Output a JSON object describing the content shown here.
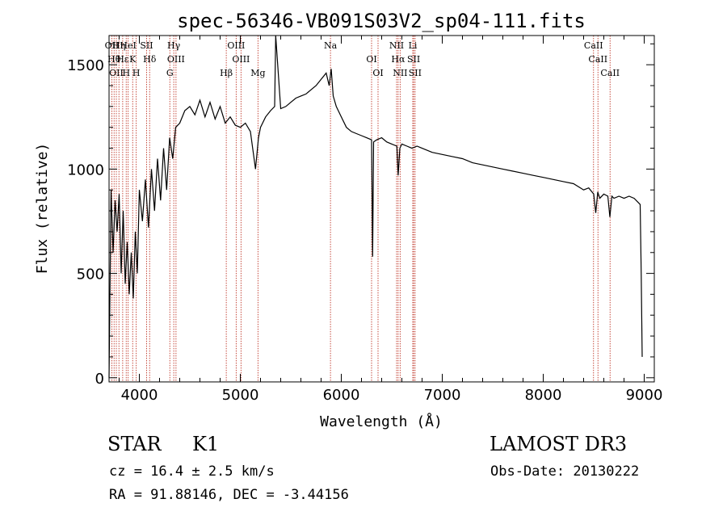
{
  "chart_data": {
    "type": "line",
    "title": "spec-56346-VB091S03V2_sp04-111.fits",
    "xlabel": "Wavelength (Å)",
    "ylabel": "Flux (relative)",
    "xlim": [
      3700,
      9100
    ],
    "ylim": [
      -20,
      1640
    ],
    "xticks": [
      4000,
      5000,
      6000,
      7000,
      8000,
      9000
    ],
    "yticks": [
      0,
      500,
      1000,
      1500
    ],
    "minor_x_step": 200,
    "minor_y_step": 100,
    "series": [
      {
        "name": "spectrum",
        "x": [
          3700,
          3720,
          3740,
          3760,
          3780,
          3800,
          3820,
          3840,
          3860,
          3880,
          3900,
          3920,
          3940,
          3960,
          3980,
          4000,
          4030,
          4060,
          4090,
          4120,
          4150,
          4180,
          4210,
          4240,
          4270,
          4300,
          4330,
          4360,
          4400,
          4450,
          4500,
          4550,
          4600,
          4650,
          4700,
          4750,
          4800,
          4850,
          4900,
          4950,
          5000,
          5050,
          5100,
          5150,
          5180,
          5200,
          5250,
          5300,
          5340,
          5350,
          5400,
          5450,
          5500,
          5550,
          5600,
          5650,
          5700,
          5750,
          5800,
          5850,
          5880,
          5900,
          5920,
          5950,
          6000,
          6050,
          6100,
          6150,
          6200,
          6250,
          6300,
          6310,
          6320,
          6350,
          6400,
          6450,
          6500,
          6550,
          6563,
          6580,
          6600,
          6650,
          6700,
          6750,
          6800,
          6900,
          7000,
          7100,
          7200,
          7300,
          7400,
          7500,
          7600,
          7700,
          7800,
          7900,
          8000,
          8100,
          8200,
          8300,
          8400,
          8450,
          8500,
          8520,
          8540,
          8560,
          8600,
          8640,
          8660,
          8680,
          8700,
          8750,
          8800,
          8850,
          8900,
          8940,
          8960,
          8970,
          8980
        ],
        "y": [
          0,
          900,
          600,
          850,
          700,
          880,
          500,
          800,
          450,
          650,
          400,
          600,
          380,
          700,
          500,
          900,
          750,
          950,
          720,
          1000,
          800,
          1050,
          850,
          1100,
          900,
          1150,
          1050,
          1200,
          1220,
          1280,
          1300,
          1260,
          1330,
          1250,
          1320,
          1240,
          1300,
          1220,
          1250,
          1210,
          1200,
          1220,
          1180,
          1000,
          1150,
          1200,
          1250,
          1280,
          1300,
          1640,
          1290,
          1300,
          1320,
          1340,
          1350,
          1360,
          1380,
          1400,
          1430,
          1460,
          1400,
          1480,
          1350,
          1300,
          1250,
          1200,
          1180,
          1170,
          1160,
          1150,
          1140,
          580,
          1130,
          1140,
          1150,
          1130,
          1120,
          1110,
          970,
          1100,
          1120,
          1110,
          1100,
          1110,
          1100,
          1080,
          1070,
          1060,
          1050,
          1030,
          1020,
          1010,
          1000,
          990,
          980,
          970,
          960,
          950,
          940,
          930,
          900,
          910,
          880,
          790,
          890,
          860,
          880,
          870,
          770,
          870,
          860,
          870,
          860,
          870,
          860,
          840,
          830,
          500,
          100
        ]
      }
    ],
    "line_groups": [
      {
        "name": "top-labels",
        "lines": [
          {
            "x": 3728,
            "label": "OII"
          },
          {
            "x": 3750,
            "label": "Hθ"
          },
          {
            "x": 3772,
            "label": "OII"
          },
          {
            "x": 3798,
            "label": "Hη"
          },
          {
            "x": 3835,
            "label": "Hε"
          },
          {
            "x": 3870,
            "label": "H"
          },
          {
            "x": 3889,
            "label": "HeI"
          },
          {
            "x": 3934,
            "label": "K"
          },
          {
            "x": 3969,
            "label": "H"
          },
          {
            "x": 4072,
            "label": "SII"
          },
          {
            "x": 4102,
            "label": "Hδ"
          },
          {
            "x": 4302,
            "label": "G"
          },
          {
            "x": 4341,
            "label": "Hγ"
          },
          {
            "x": 4363,
            "label": "OIII"
          },
          {
            "x": 4861,
            "label": "Hβ"
          },
          {
            "x": 4959,
            "label": "OIII"
          },
          {
            "x": 5007,
            "label": "OIII"
          },
          {
            "x": 5175,
            "label": "Mg"
          },
          {
            "x": 5893,
            "label": "Na"
          },
          {
            "x": 6300,
            "label": "OI"
          },
          {
            "x": 6364,
            "label": "OI"
          },
          {
            "x": 6548,
            "label": "NII"
          },
          {
            "x": 6563,
            "label": "Hα"
          },
          {
            "x": 6583,
            "label": "NII"
          },
          {
            "x": 6708,
            "label": "Li"
          },
          {
            "x": 6717,
            "label": "SII"
          },
          {
            "x": 6731,
            "label": "SII"
          },
          {
            "x": 8498,
            "label": "CaII"
          },
          {
            "x": 8542,
            "label": "CaII"
          },
          {
            "x": 8662,
            "label": "CaII"
          }
        ]
      }
    ]
  },
  "info": {
    "object_class": "STAR",
    "subclass": "K1",
    "survey": "LAMOST DR3",
    "cz_line": "cz = 16.4 ± 2.5 km/s",
    "obsdate_line": "Obs-Date: 20130222",
    "radec_line": "RA =  91.88146, DEC =  -3.44156"
  },
  "colors": {
    "axis": "#000000",
    "spectrum": "#000000",
    "marker_lines": "#c0392b"
  }
}
